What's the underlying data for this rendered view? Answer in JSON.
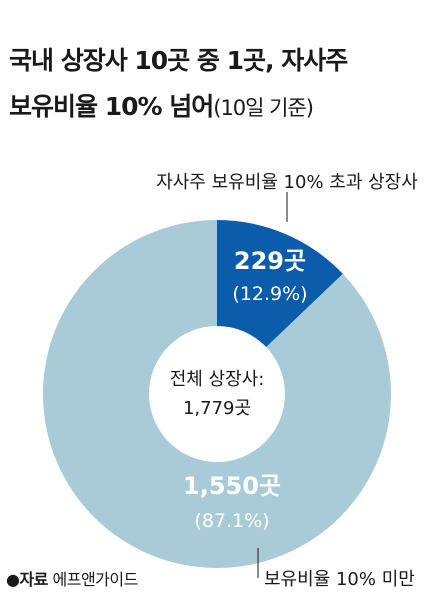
{
  "title_line1": "국내 상장사 10곳 중 1곳, 자사주",
  "title_line2": "보유비율 10% 넘어",
  "title_note": "(10일 기준)",
  "source_label": "●자료",
  "source_name": "에프앤가이드",
  "colors": {
    "dark": "#0b5cab",
    "light": "#a9cbd8",
    "text": "#1a1a1a"
  },
  "chart_data": {
    "type": "pie",
    "variant": "donut",
    "center_label": "전체 상장사:",
    "center_value": "1,779곳",
    "total": 1779,
    "slices": [
      {
        "label": "자사주 보유비율 10% 초과 상장사",
        "value": 229,
        "value_text": "229곳",
        "percent_text": "(12.9%)"
      },
      {
        "label": "보유비율 10% 미만",
        "value": 1550,
        "value_text": "1,550곳",
        "percent_text": "(87.1%)"
      }
    ]
  }
}
